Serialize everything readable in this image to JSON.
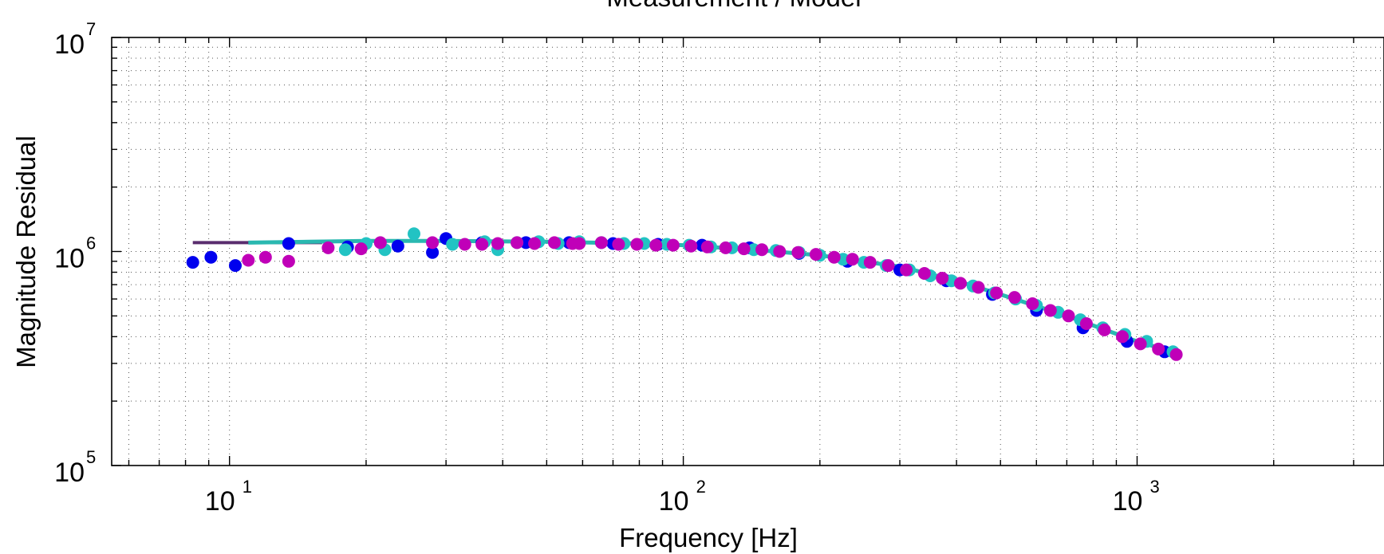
{
  "chart_data": {
    "type": "scatter",
    "title": "Measurement / Model",
    "xlabel": "Frequency [Hz]",
    "ylabel": "Magnitude Residual",
    "xscale": "log",
    "yscale": "log",
    "xlim": [
      5.5,
      3500
    ],
    "ylim": [
      100000,
      10000000
    ],
    "grid": true,
    "x_ticks": [
      {
        "value": 10,
        "base": "10",
        "exp": "1"
      },
      {
        "value": 100,
        "base": "10",
        "exp": "2"
      },
      {
        "value": 1000,
        "base": "10",
        "exp": "3"
      }
    ],
    "y_ticks": [
      {
        "value": 100000,
        "base": "10",
        "exp": "5"
      },
      {
        "value": 1000000,
        "base": "10",
        "exp": "6"
      },
      {
        "value": 10000000,
        "base": "10",
        "exp": "7"
      }
    ],
    "lines": [
      {
        "color": "#5a2d6e",
        "x": [
          8.3,
          9.5,
          11,
          13,
          16
        ],
        "y": [
          1100000,
          1100000,
          1100000,
          1100000,
          1100000
        ]
      },
      {
        "color": "#2ab8b0",
        "x": [
          11,
          15,
          20,
          30,
          50,
          80,
          100,
          150,
          200,
          300,
          400,
          500,
          700,
          1000,
          1200
        ],
        "y": [
          1100000,
          1110000,
          1120000,
          1120000,
          1110000,
          1090000,
          1070000,
          1010000,
          960000,
          850000,
          730000,
          630000,
          500000,
          380000,
          340000
        ]
      }
    ],
    "series": [
      {
        "color": "#0000ee",
        "x": [
          8.3,
          9.1,
          10.3,
          13.5,
          18.2,
          23.5,
          28.0,
          30.0,
          36.0,
          45.0,
          56.0,
          70.0,
          88.0,
          110.0,
          140.0,
          180.0,
          230.0,
          300.0,
          380.0,
          480.0,
          600.0,
          760.0,
          950.0,
          1150.0
        ],
        "y": [
          890000,
          940000,
          860000,
          1090000,
          1050000,
          1060000,
          990000,
          1150000,
          1100000,
          1100000,
          1100000,
          1090000,
          1080000,
          1070000,
          1040000,
          980000,
          900000,
          820000,
          730000,
          630000,
          530000,
          440000,
          380000,
          340000
        ]
      },
      {
        "color": "#22c3c3",
        "x": [
          18.0,
          20.0,
          22.0,
          25.5,
          31.0,
          36.5,
          39.0,
          43.0,
          48.0,
          53.0,
          59.0,
          66.0,
          74.0,
          82.0,
          92.0,
          103.0,
          115.0,
          128.0,
          143.0,
          160.0,
          180.0,
          200.0,
          225.0,
          250.0,
          280.0,
          315.0,
          350.0,
          390.0,
          435.0,
          485.0,
          540.0,
          600.0,
          670.0,
          750.0,
          840.0,
          940.0,
          1050.0,
          1200.0
        ],
        "y": [
          1020000,
          1090000,
          1020000,
          1210000,
          1080000,
          1110000,
          1020000,
          1100000,
          1110000,
          1090000,
          1110000,
          1100000,
          1090000,
          1090000,
          1080000,
          1070000,
          1050000,
          1040000,
          1020000,
          1010000,
          990000,
          960000,
          920000,
          890000,
          860000,
          820000,
          770000,
          730000,
          690000,
          640000,
          600000,
          560000,
          520000,
          480000,
          440000,
          410000,
          380000,
          340000
        ]
      },
      {
        "color": "#c000b8",
        "x": [
          11.0,
          12.0,
          13.5,
          16.5,
          19.5,
          21.5,
          28.0,
          33.0,
          36.0,
          39.0,
          43.0,
          47.0,
          52.0,
          57.0,
          59.0,
          66.0,
          72.0,
          79.0,
          87.0,
          95.0,
          104.0,
          113.0,
          124.0,
          136.0,
          149.0,
          163.0,
          179.0,
          196.0,
          215.0,
          236.0,
          258.0,
          283.0,
          310.0,
          340.0,
          372.0,
          408.0,
          447.0,
          490.0,
          537.0,
          588.0,
          644.0,
          706.0,
          773.0,
          847.0,
          928.0,
          1017.0,
          1114.0,
          1220.0
        ],
        "y": [
          910000,
          940000,
          900000,
          1040000,
          1030000,
          1100000,
          1100000,
          1080000,
          1080000,
          1090000,
          1100000,
          1090000,
          1100000,
          1090000,
          1090000,
          1100000,
          1080000,
          1080000,
          1070000,
          1070000,
          1060000,
          1050000,
          1040000,
          1030000,
          1020000,
          1000000,
          990000,
          970000,
          940000,
          920000,
          890000,
          860000,
          820000,
          790000,
          750000,
          710000,
          680000,
          640000,
          610000,
          570000,
          530000,
          500000,
          460000,
          430000,
          400000,
          370000,
          350000,
          330000
        ]
      }
    ]
  }
}
